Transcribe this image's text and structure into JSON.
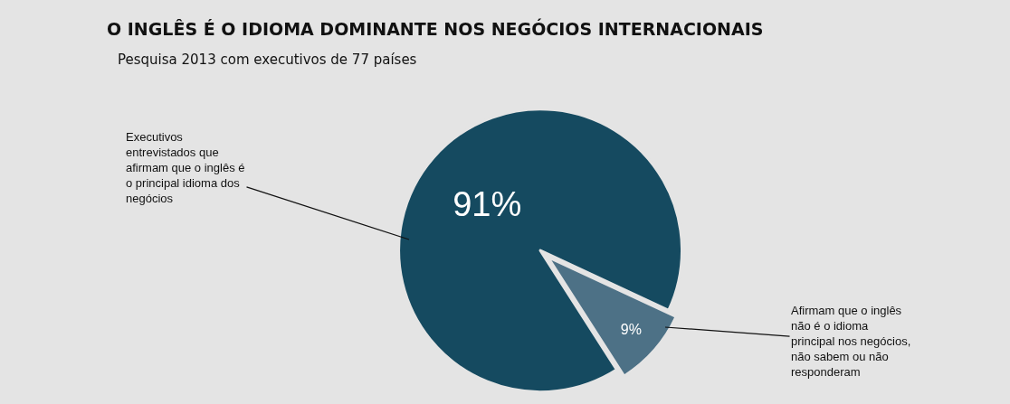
{
  "chart_data": {
    "type": "pie",
    "title": "O INGLÊS É O IDIOMA DOMINANTE NOS NEGÓCIOS INTERNACIONAIS",
    "subtitle": "Pesquisa 2013 com executivos de 77 países",
    "categories": [
      "Afirmam que o inglês não é o idioma principal nos negócios, não sabem ou não responderam",
      "Executivos entrevistados que afirmam que o inglês é o principal idioma dos negócios"
    ],
    "values": [
      9,
      91
    ],
    "value_labels": [
      "9%",
      "91%"
    ],
    "colors": [
      "#4d7186",
      "#154a60"
    ],
    "legend": false
  }
}
